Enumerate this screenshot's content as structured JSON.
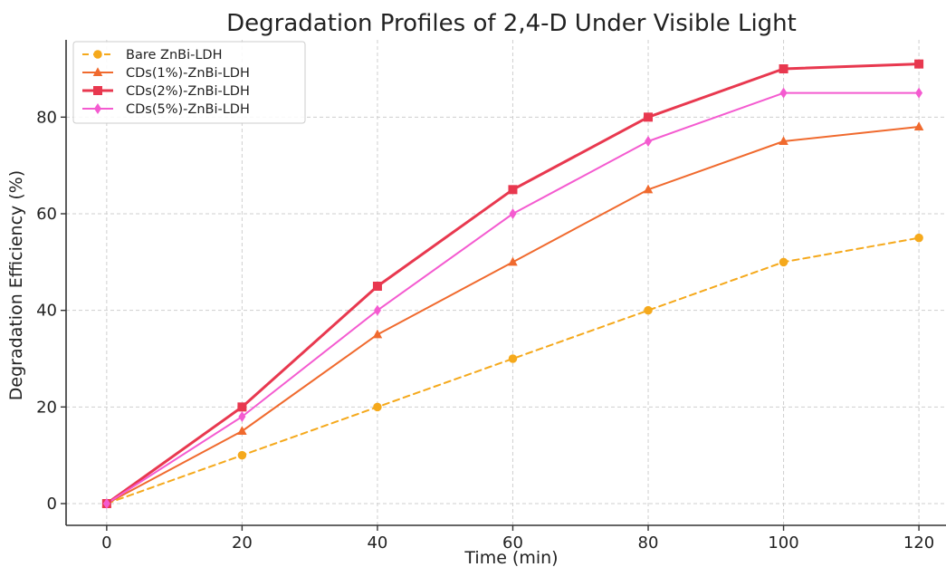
{
  "chart_data": {
    "type": "line",
    "title": "Degradation Profiles of 2,4-D Under Visible Light",
    "xlabel": "Time (min)",
    "ylabel": "Degradation Efficiency (%)",
    "x": [
      0,
      20,
      40,
      60,
      80,
      100,
      120
    ],
    "xticks": [
      0,
      20,
      40,
      60,
      80,
      100,
      120
    ],
    "yticks": [
      0,
      20,
      40,
      60,
      80
    ],
    "xlim": [
      -6,
      124
    ],
    "ylim": [
      -4.5,
      96
    ],
    "grid": true,
    "legend_position": "top-left",
    "series": [
      {
        "name": "Bare ZnBi-LDH",
        "values": [
          0,
          10,
          20,
          30,
          40,
          50,
          55
        ],
        "color": "#f5a91c",
        "marker": "circle",
        "line_style": "dashed"
      },
      {
        "name": "CDs(1%)-ZnBi-LDH",
        "values": [
          0,
          15,
          35,
          50,
          65,
          75,
          78
        ],
        "color": "#f06a2e",
        "marker": "triangle",
        "line_style": "solid"
      },
      {
        "name": "CDs(2%)-ZnBi-LDH",
        "values": [
          0,
          20,
          45,
          65,
          80,
          90,
          91
        ],
        "color": "#e8384f",
        "marker": "square",
        "line_style": "solid"
      },
      {
        "name": "CDs(5%)-ZnBi-LDH",
        "values": [
          0,
          18,
          40,
          60,
          75,
          85,
          85
        ],
        "color": "#f45bd0",
        "marker": "diamond",
        "line_style": "solid"
      }
    ]
  }
}
